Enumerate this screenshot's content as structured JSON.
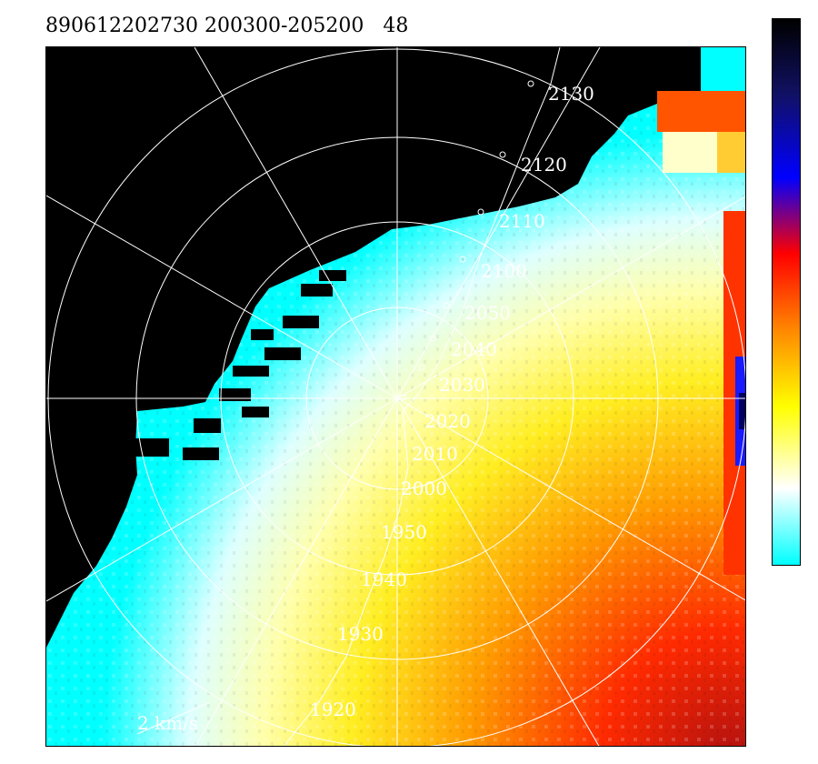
{
  "header": {
    "title": "890612202730 200300-205200   48"
  },
  "track_labels": [
    "2130",
    "2120",
    "2110",
    "2100",
    "2050",
    "2040",
    "2030",
    "2020",
    "2010",
    "2000",
    "1950",
    "1940",
    "1930",
    "1920"
  ],
  "scale_label": "2 km/s",
  "colors": {
    "background": "#000000",
    "low_velocity": "#00ffff",
    "mid_low": "#ccffff",
    "white": "#ffffff",
    "mid": "#ffff44",
    "mid_high": "#ff9900",
    "high": "#ff2200",
    "very_high": "#1a1aff",
    "max": "#000000"
  },
  "colorbar": {
    "stops": [
      "#000000",
      "#111166",
      "#0000ff",
      "#ff0000",
      "#ff8800",
      "#ffff00",
      "#ffffff",
      "#00ffff"
    ]
  }
}
